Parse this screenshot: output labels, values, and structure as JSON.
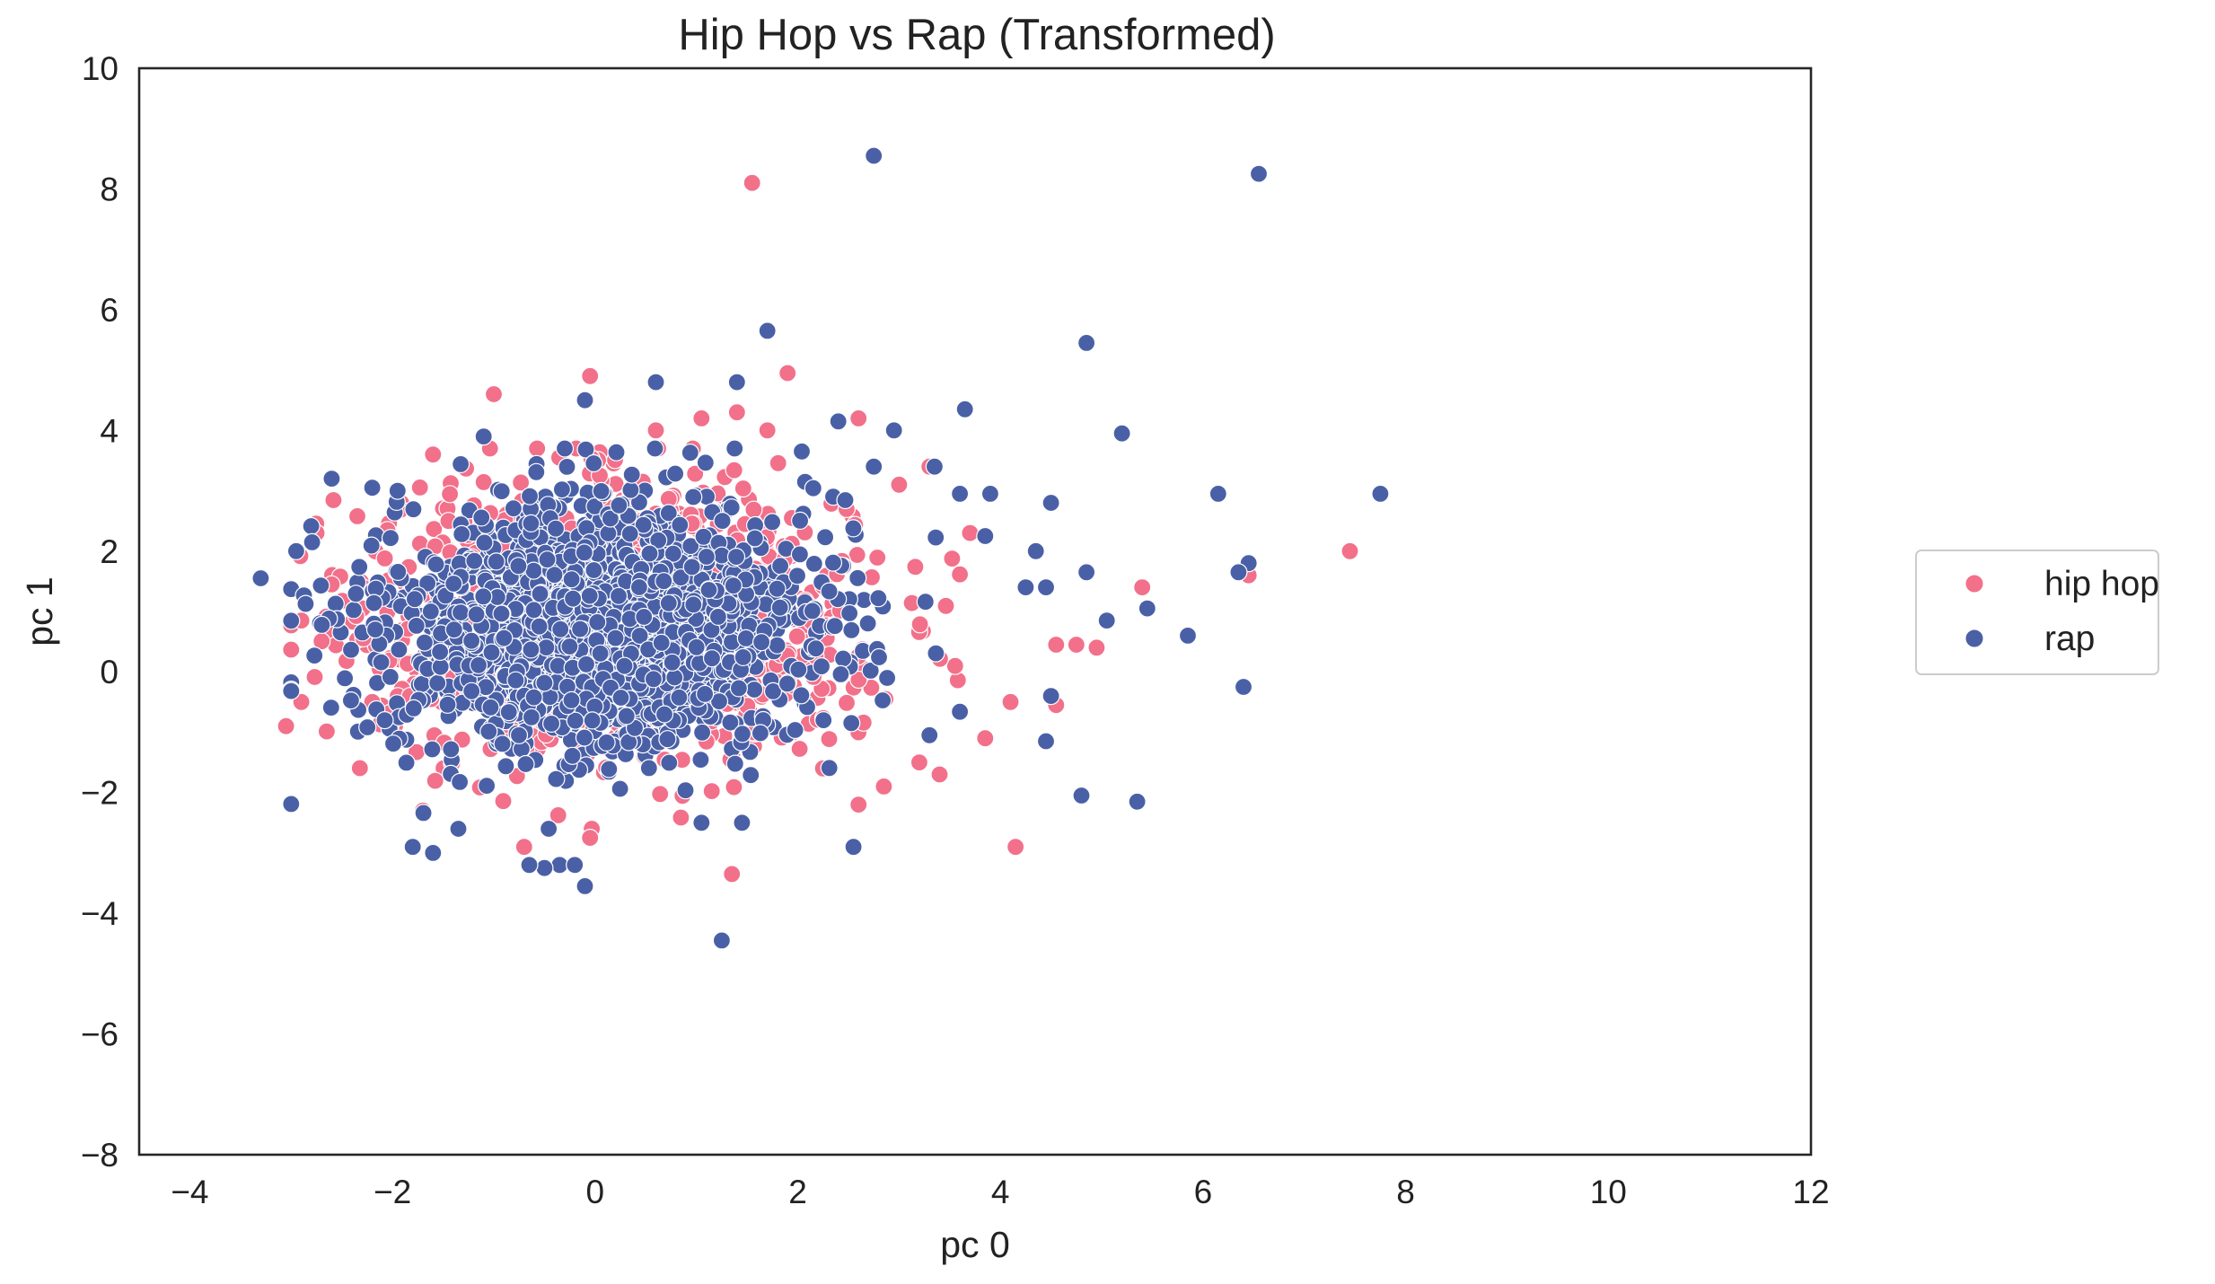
{
  "chart_data": {
    "type": "scatter",
    "title": "Hip Hop vs Rap (Transformed)",
    "xlabel": "pc 0",
    "ylabel": "pc 1",
    "xlim": [
      -4.5,
      12
    ],
    "ylim": [
      -8,
      10
    ],
    "xticks": [
      -4,
      -2,
      0,
      2,
      4,
      6,
      8,
      10,
      12
    ],
    "yticks": [
      -8,
      -6,
      -4,
      -2,
      0,
      2,
      4,
      6,
      8,
      10
    ],
    "grid": false,
    "legend": {
      "placement": "center-right, outside plot",
      "title": ""
    },
    "series": [
      {
        "name": "hip hop",
        "color": "#f2708a",
        "core": {
          "count": 1400,
          "mean": [
            0.2,
            0.8
          ],
          "sd": [
            1.15,
            1.05
          ],
          "note": "approximate dense cloud"
        },
        "points": [
          [
            1.55,
            8.1
          ],
          [
            -0.05,
            4.9
          ],
          [
            -1.0,
            4.6
          ],
          [
            1.9,
            4.95
          ],
          [
            1.05,
            4.2
          ],
          [
            1.4,
            4.3
          ],
          [
            2.6,
            4.2
          ],
          [
            1.7,
            4.0
          ],
          [
            -1.6,
            3.6
          ],
          [
            0.6,
            4.0
          ],
          [
            3.0,
            3.1
          ],
          [
            3.3,
            3.4
          ],
          [
            7.45,
            2.0
          ],
          [
            3.7,
            2.3
          ],
          [
            6.45,
            1.6
          ],
          [
            5.4,
            1.4
          ],
          [
            4.55,
            0.45
          ],
          [
            4.75,
            0.45
          ],
          [
            4.95,
            0.4
          ],
          [
            4.55,
            -0.55
          ],
          [
            4.1,
            -0.5
          ],
          [
            3.85,
            -1.1
          ],
          [
            3.4,
            -1.7
          ],
          [
            3.2,
            -1.5
          ],
          [
            2.6,
            -2.2
          ],
          [
            2.85,
            -1.9
          ],
          [
            4.15,
            -2.9
          ],
          [
            1.35,
            -3.35
          ],
          [
            -0.05,
            -2.75
          ],
          [
            -1.7,
            -2.3
          ],
          [
            -3.05,
            -0.9
          ],
          [
            -2.9,
            0.85
          ],
          [
            -2.6,
            1.45
          ],
          [
            -2.75,
            2.3
          ],
          [
            -2.05,
            2.35
          ],
          [
            -2.2,
            -0.5
          ],
          [
            -2.9,
            -0.5
          ],
          [
            -0.7,
            -2.9
          ]
        ]
      },
      {
        "name": "rap",
        "color": "#4a60a6",
        "core": {
          "count": 1700,
          "mean": [
            0.05,
            0.75
          ],
          "sd": [
            1.05,
            1.05
          ],
          "note": "approximate dense cloud"
        },
        "points": [
          [
            2.75,
            8.55
          ],
          [
            6.55,
            8.25
          ],
          [
            4.85,
            5.45
          ],
          [
            1.7,
            5.65
          ],
          [
            1.4,
            4.8
          ],
          [
            0.6,
            4.8
          ],
          [
            3.65,
            4.35
          ],
          [
            5.2,
            3.95
          ],
          [
            2.4,
            4.15
          ],
          [
            2.95,
            4.0
          ],
          [
            2.75,
            3.4
          ],
          [
            3.35,
            3.4
          ],
          [
            6.15,
            2.95
          ],
          [
            7.75,
            2.95
          ],
          [
            3.9,
            2.95
          ],
          [
            3.6,
            2.95
          ],
          [
            4.5,
            2.8
          ],
          [
            4.35,
            2.0
          ],
          [
            3.85,
            2.25
          ],
          [
            4.85,
            1.65
          ],
          [
            6.45,
            1.8
          ],
          [
            6.35,
            1.65
          ],
          [
            5.45,
            1.05
          ],
          [
            5.05,
            0.85
          ],
          [
            5.85,
            0.6
          ],
          [
            4.45,
            1.4
          ],
          [
            4.25,
            1.4
          ],
          [
            6.4,
            -0.25
          ],
          [
            4.5,
            -0.4
          ],
          [
            4.45,
            -1.15
          ],
          [
            5.35,
            -2.15
          ],
          [
            4.8,
            -2.05
          ],
          [
            3.3,
            -1.05
          ],
          [
            2.55,
            -2.9
          ],
          [
            1.25,
            -4.45
          ],
          [
            1.05,
            -2.5
          ],
          [
            1.45,
            -2.5
          ],
          [
            -0.1,
            -3.55
          ],
          [
            -0.35,
            -3.2
          ],
          [
            -0.5,
            -3.25
          ],
          [
            -0.65,
            -3.2
          ],
          [
            -0.2,
            -3.2
          ],
          [
            -1.6,
            -3.0
          ],
          [
            -1.8,
            -2.9
          ],
          [
            -1.35,
            -2.6
          ],
          [
            -3.3,
            1.55
          ],
          [
            -2.95,
            2.0
          ],
          [
            -2.6,
            3.2
          ],
          [
            -2.2,
            3.05
          ],
          [
            -1.95,
            3.0
          ],
          [
            -1.1,
            3.9
          ],
          [
            -0.3,
            3.7
          ],
          [
            -0.1,
            4.5
          ]
        ]
      }
    ]
  }
}
